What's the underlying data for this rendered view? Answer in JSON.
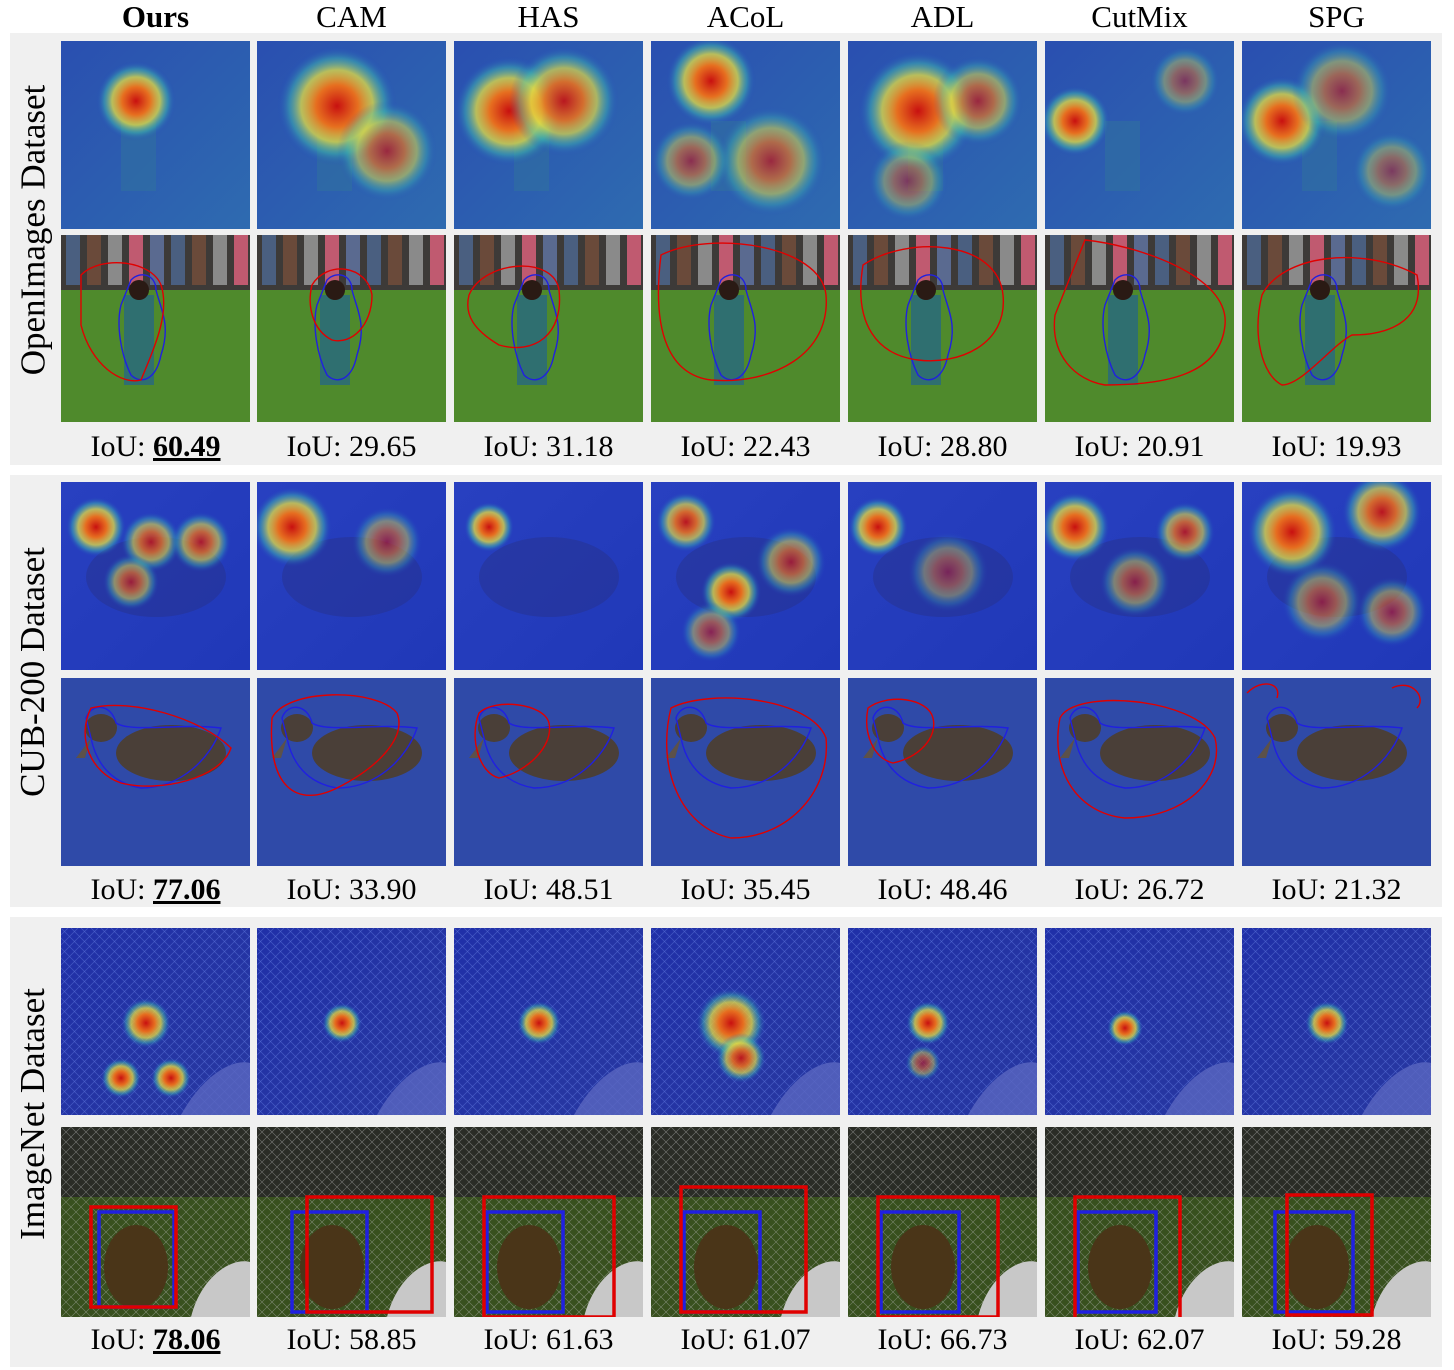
{
  "columns": [
    "Ours",
    "CAM",
    "HAS",
    "ACoL",
    "ADL",
    "CutMix",
    "SPG"
  ],
  "iou_label": "IoU:",
  "datasets": [
    {
      "label": "OpenImages Dataset",
      "iou": [
        "60.49",
        "29.65",
        "31.18",
        "22.43",
        "28.80",
        "20.91",
        "19.93"
      ],
      "heat_focus": "child"
    },
    {
      "label": "CUB-200 Dataset",
      "iou": [
        "77.06",
        "33.90",
        "48.51",
        "35.45",
        "48.46",
        "26.72",
        "21.32"
      ],
      "heat_focus": "bird"
    },
    {
      "label": "ImageNet Dataset",
      "iou": [
        "78.06",
        "58.85",
        "61.63",
        "61.07",
        "66.73",
        "62.07",
        "59.28"
      ],
      "heat_focus": "monkey"
    }
  ],
  "colors": {
    "prediction": "#e00000",
    "ground_truth": "#2020e0",
    "heat_low": "#1a2fb0",
    "heat_high": "#d01010"
  }
}
